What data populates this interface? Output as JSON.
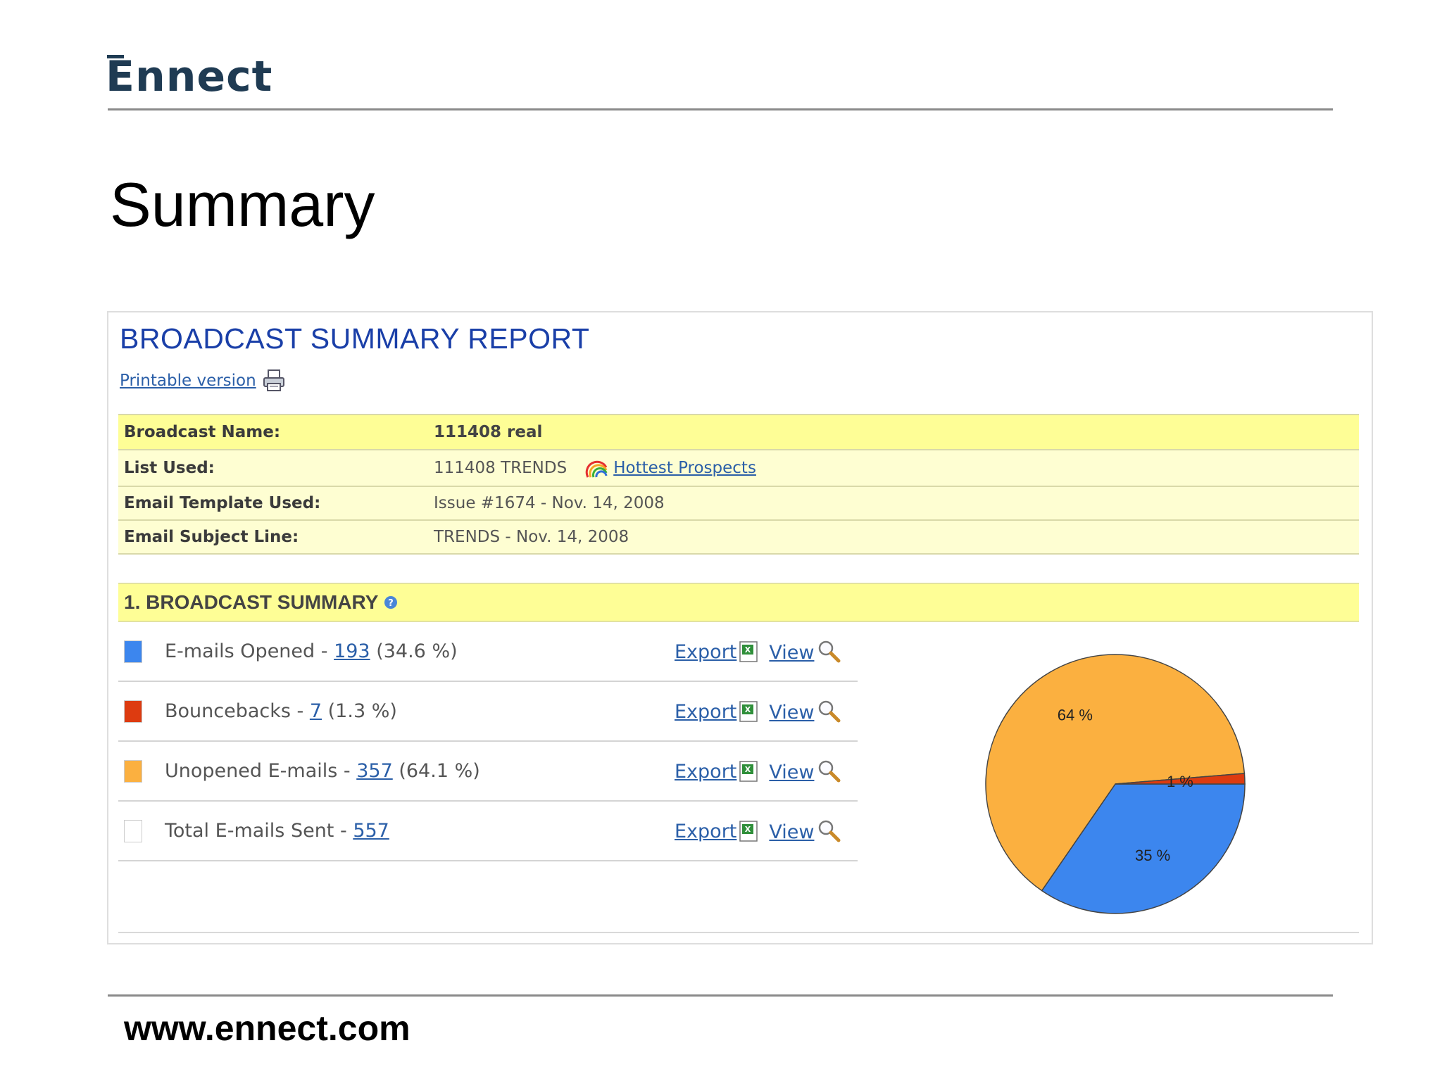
{
  "brand": {
    "logo": "Ennect"
  },
  "slide": {
    "title": "Summary",
    "footer_url": "www.ennect.com"
  },
  "report": {
    "title": "BROADCAST SUMMARY REPORT",
    "printable_label": "Printable version",
    "info": [
      {
        "label": "Broadcast Name:",
        "value": "111408 real"
      },
      {
        "label": "List Used:",
        "value": "111408 TRENDS",
        "link": "Hottest Prospects"
      },
      {
        "label": "Email Template Used:",
        "value": "Issue #1674 - Nov. 14, 2008"
      },
      {
        "label": "Email Subject Line:",
        "value": "TRENDS - Nov. 14, 2008"
      }
    ],
    "section_title": "1. BROADCAST SUMMARY",
    "stats": [
      {
        "label": "E-mails Opened - ",
        "count": "193",
        "pct": " (34.6 %)",
        "color": "#3c86ee"
      },
      {
        "label": "Bouncebacks - ",
        "count": "7",
        "pct": " (1.3 %)",
        "color": "#dd3b10"
      },
      {
        "label": "Unopened E-mails - ",
        "count": "357",
        "pct": " (64.1 %)",
        "color": "#fbb040"
      },
      {
        "label": "Total E-mails Sent - ",
        "count": "557",
        "pct": "",
        "color": "#ffffff"
      }
    ],
    "export_label": "Export",
    "view_label": "View",
    "icons": {
      "printer": "printer-icon",
      "list": "rainbow-icon",
      "help": "help-icon",
      "export": "excel-icon",
      "view": "magnifier-icon"
    }
  },
  "chart_data": {
    "type": "pie",
    "slices": [
      {
        "label": "64 %",
        "value": 64.1,
        "color": "#fbb040"
      },
      {
        "label": "1 %",
        "value": 1.3,
        "color": "#dd3b10"
      },
      {
        "label": "35 %",
        "value": 34.6,
        "color": "#3c86ee"
      }
    ]
  }
}
